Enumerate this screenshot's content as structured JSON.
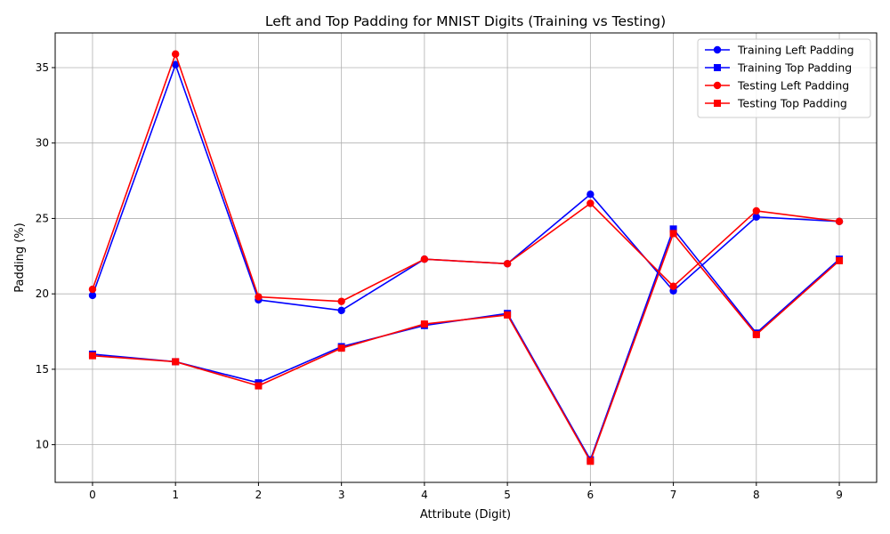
{
  "chart_data": {
    "type": "line",
    "title": "Left and Top Padding for MNIST Digits (Training vs Testing)",
    "xlabel": "Attribute (Digit)",
    "ylabel": "Padding (%)",
    "categories": [
      "0",
      "1",
      "2",
      "3",
      "4",
      "5",
      "6",
      "7",
      "8",
      "9"
    ],
    "x": [
      0,
      1,
      2,
      3,
      4,
      5,
      6,
      7,
      8,
      9
    ],
    "xlim": [
      -0.45,
      9.45
    ],
    "ylim": [
      7.5,
      37.3
    ],
    "yticks": [
      10,
      15,
      20,
      25,
      30,
      35
    ],
    "grid": true,
    "legend_position": "top-right",
    "series": [
      {
        "name": "Training Left Padding",
        "color": "#0000ff",
        "marker": "circle",
        "values": [
          19.9,
          35.2,
          19.6,
          18.9,
          22.3,
          22.0,
          26.6,
          20.2,
          25.1,
          24.8
        ]
      },
      {
        "name": "Training Top Padding",
        "color": "#0000ff",
        "marker": "square",
        "values": [
          16.0,
          15.5,
          14.1,
          16.5,
          17.9,
          18.7,
          9.0,
          24.3,
          17.4,
          22.3
        ]
      },
      {
        "name": "Testing Left Padding",
        "color": "#ff0000",
        "marker": "circle",
        "values": [
          20.3,
          35.9,
          19.8,
          19.5,
          22.3,
          22.0,
          26.0,
          20.5,
          25.5,
          24.8
        ]
      },
      {
        "name": "Testing Top Padding",
        "color": "#ff0000",
        "marker": "square",
        "values": [
          15.9,
          15.5,
          13.9,
          16.4,
          18.0,
          18.6,
          8.9,
          24.0,
          17.3,
          22.2
        ]
      }
    ]
  }
}
